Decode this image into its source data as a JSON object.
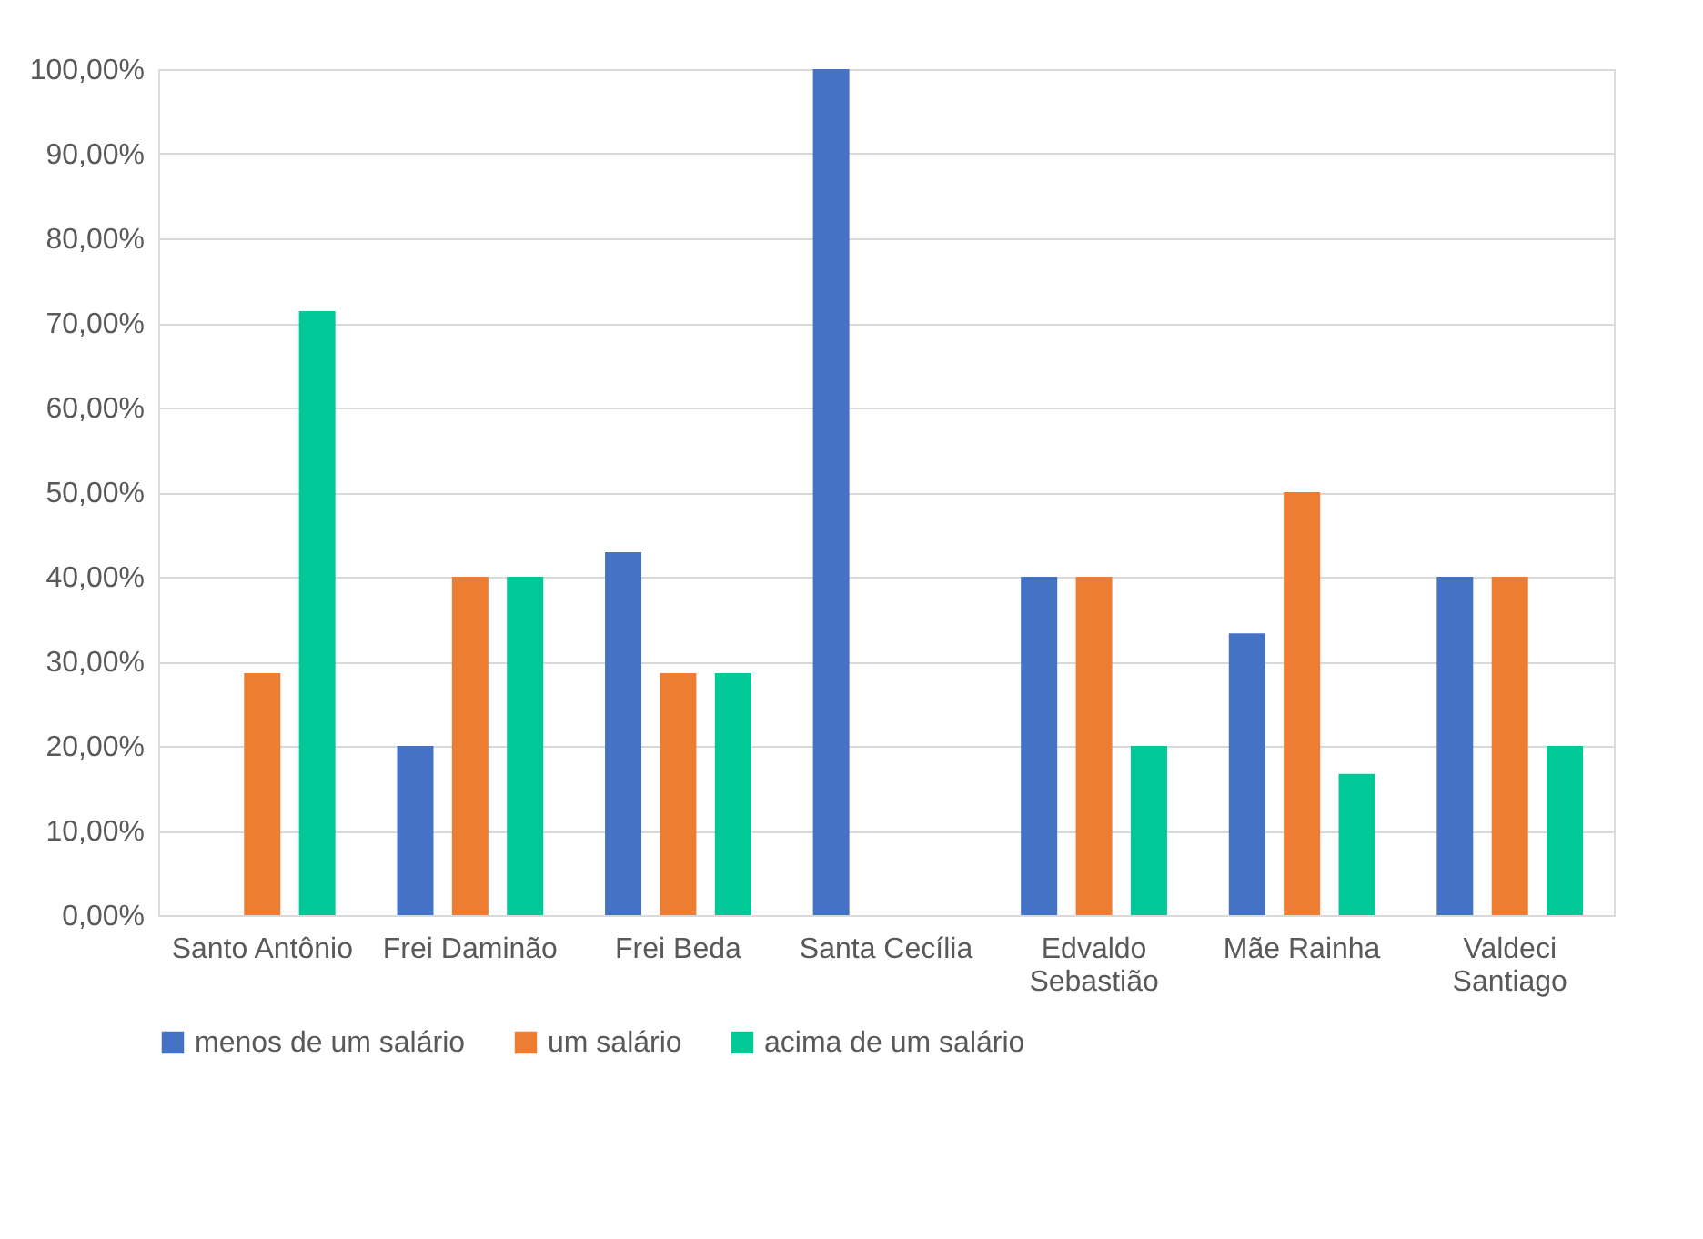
{
  "chart_data": {
    "type": "bar",
    "categories": [
      "Santo Antônio",
      "Frei Daminão",
      "Frei Beda",
      "Santa Cecília",
      "Edvaldo Sebastião",
      "Mãe Rainha",
      "Valdeci Santiago"
    ],
    "series": [
      {
        "name": "menos de um salário",
        "color": "#4472c4",
        "values": [
          0,
          20,
          42.9,
          100,
          40,
          33.3,
          40
        ]
      },
      {
        "name": "um salário",
        "color": "#ed7d31",
        "values": [
          28.6,
          40,
          28.6,
          0,
          40,
          50,
          40
        ]
      },
      {
        "name": "acima de um salário",
        "color": "#00c896",
        "values": [
          71.4,
          40,
          28.6,
          0,
          20,
          16.7,
          20
        ]
      }
    ],
    "ylim": [
      0,
      100
    ],
    "yticks": [
      {
        "value": 0,
        "label": "0,00%"
      },
      {
        "value": 10,
        "label": "10,00%"
      },
      {
        "value": 20,
        "label": "20,00%"
      },
      {
        "value": 30,
        "label": "30,00%"
      },
      {
        "value": 40,
        "label": "40,00%"
      },
      {
        "value": 50,
        "label": "50,00%"
      },
      {
        "value": 60,
        "label": "60,00%"
      },
      {
        "value": 70,
        "label": "70,00%"
      },
      {
        "value": 80,
        "label": "80,00%"
      },
      {
        "value": 90,
        "label": "90,00%"
      },
      {
        "value": 100,
        "label": "100,00%"
      }
    ],
    "grid": "y",
    "legend": "bottom"
  }
}
